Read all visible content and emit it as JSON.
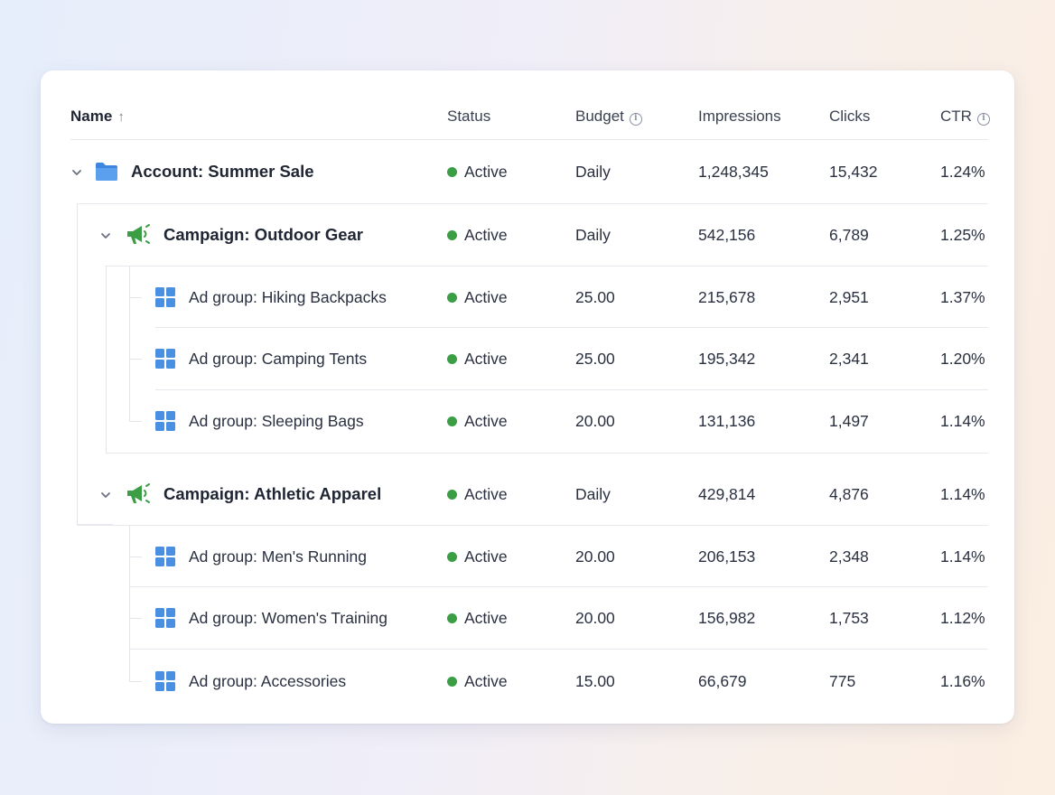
{
  "header": {
    "name": "Name",
    "status": "Status",
    "budget": "Budget",
    "impressions": "Impressions",
    "clicks": "Clicks",
    "ctr": "CTR"
  },
  "rows": [
    {
      "level": "account",
      "icon": "folder-icon",
      "label": "Account: Summer Sale",
      "status": "Active",
      "budget": "Daily",
      "impressions": "1,248,345",
      "clicks": "15,432",
      "ctr": "1.24%"
    },
    {
      "level": "campaign",
      "icon": "megaphone-icon",
      "label": "Campaign: Outdoor Gear",
      "status": "Active",
      "budget": "Daily",
      "impressions": "542,156",
      "clicks": "6,789",
      "ctr": "1.25%"
    },
    {
      "level": "adgroup",
      "icon": "grid-icon",
      "label": "Ad group: Hiking Backpacks",
      "status": "Active",
      "budget": "25.00",
      "impressions": "215,678",
      "clicks": "2,951",
      "ctr": "1.37%"
    },
    {
      "level": "adgroup",
      "icon": "grid-icon",
      "label": "Ad group: Camping Tents",
      "status": "Active",
      "budget": "25.00",
      "impressions": "195,342",
      "clicks": "2,341",
      "ctr": "1.20%"
    },
    {
      "level": "adgroup",
      "icon": "grid-icon",
      "label": "Ad group: Sleeping Bags",
      "status": "Active",
      "budget": "20.00",
      "impressions": "131,136",
      "clicks": "1,497",
      "ctr": "1.14%"
    },
    {
      "level": "campaign",
      "icon": "megaphone-icon",
      "label": "Campaign: Athletic Apparel",
      "status": "Active",
      "budget": "Daily",
      "impressions": "429,814",
      "clicks": "4,876",
      "ctr": "1.14%"
    },
    {
      "level": "adgroup",
      "icon": "grid-icon",
      "label": "Ad group: Men's Running",
      "status": "Active",
      "budget": "20.00",
      "impressions": "206,153",
      "clicks": "2,348",
      "ctr": "1.14%"
    },
    {
      "level": "adgroup",
      "icon": "grid-icon",
      "label": "Ad group: Women's Training",
      "status": "Active",
      "budget": "20.00",
      "impressions": "156,982",
      "clicks": "1,753",
      "ctr": "1.12%"
    },
    {
      "level": "adgroup",
      "icon": "grid-icon",
      "label": "Ad group: Accessories",
      "status": "Active",
      "budget": "15.00",
      "impressions": "66,679",
      "clicks": "775",
      "ctr": "1.16%"
    }
  ],
  "colors": {
    "status_active": "#3b9e45",
    "folder": "#4a90e2",
    "megaphone": "#3b9e45",
    "grid": "#4a90e2"
  }
}
